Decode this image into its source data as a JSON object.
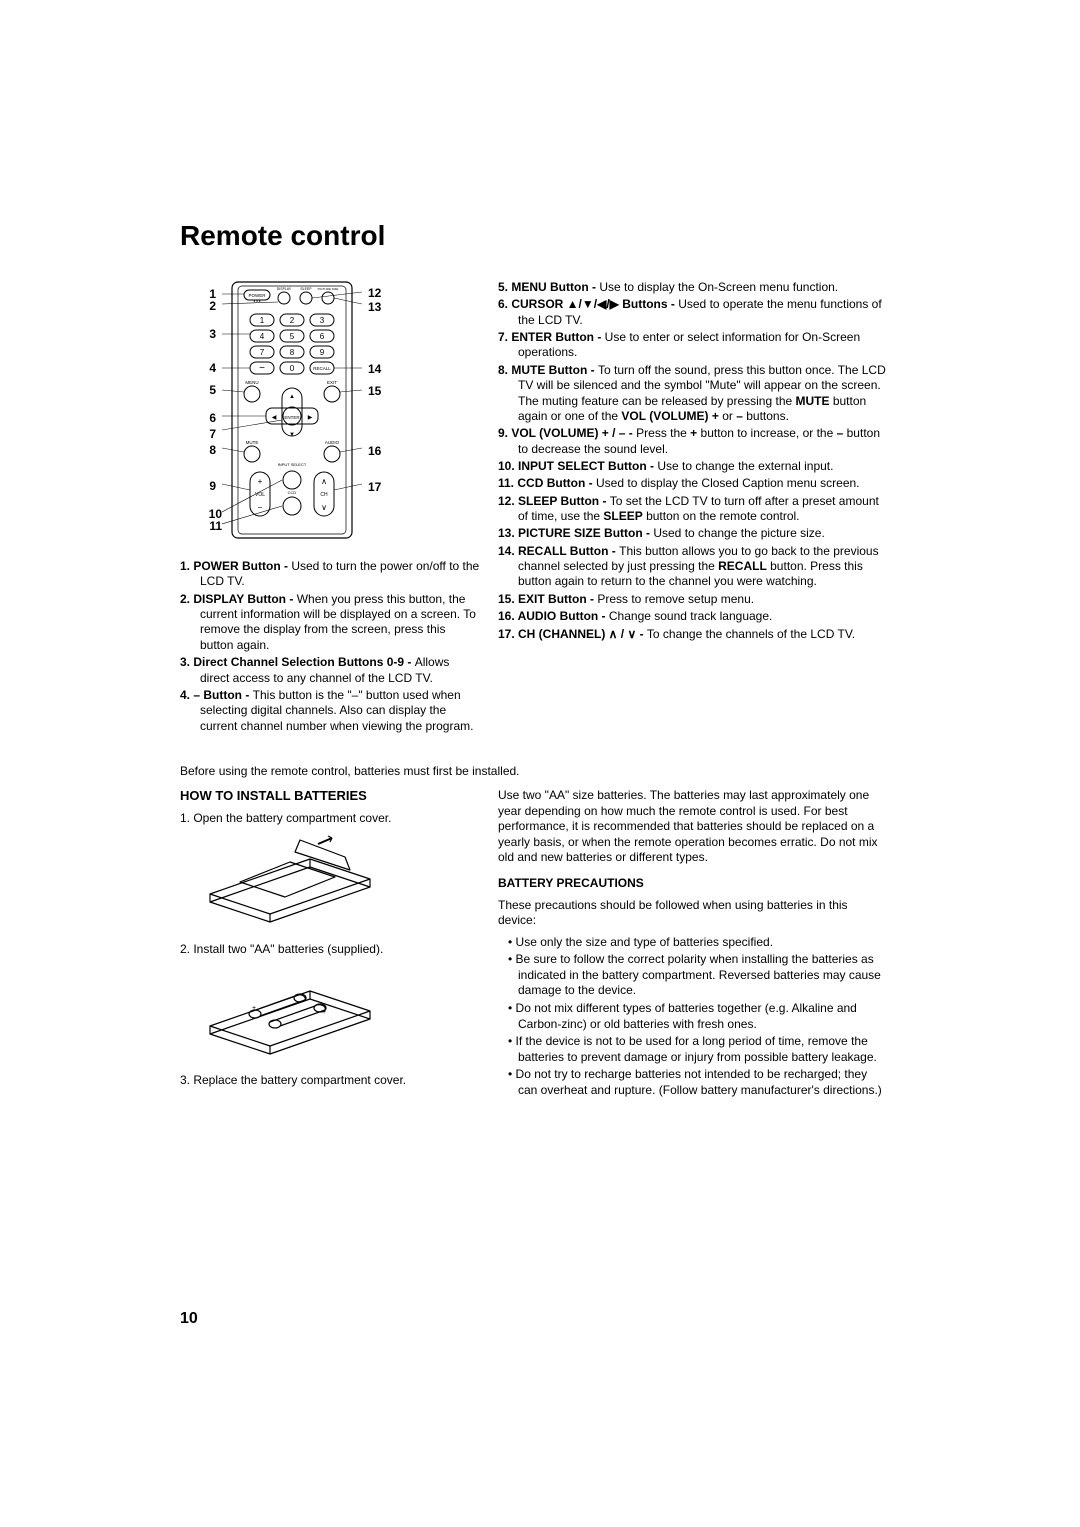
{
  "title": "Remote control",
  "page_number": "10",
  "callouts_left": {
    "c1": "1",
    "c2": "2",
    "c3": "3",
    "c4": "4",
    "c5": "5",
    "c6": "6",
    "c7": "7",
    "c8": "8",
    "c9": "9",
    "c10": "10",
    "c11": "11"
  },
  "callouts_right": {
    "c12": "12",
    "c13": "13",
    "c14": "14",
    "c15": "15",
    "c16": "16",
    "c17": "17"
  },
  "remote_labels": {
    "power": "POWER",
    "display": "DISPLAY",
    "sleep": "SLEEP",
    "psize": "PICTURE SIZE",
    "recall": "RECALL",
    "menu": "MENU",
    "exit": "EXIT",
    "enter": "ENTER",
    "mute": "MUTE",
    "audio": "AUDIO",
    "input": "INPUT SELECT",
    "vol": "VOL",
    "ccd": "CCD",
    "ch": "CH"
  },
  "descriptions_left": [
    {
      "num": "1.",
      "name": "POWER Button - ",
      "text": "Used to turn the power on/off to the LCD TV."
    },
    {
      "num": "2.",
      "name": "DISPLAY Button - ",
      "text": "When you press this button, the current information will be displayed on a screen. To remove the display from the screen, press this button again."
    },
    {
      "num": "3.",
      "name": "Direct Channel Selection Buttons 0-9 - ",
      "text": "Allows direct access to any channel of the LCD TV."
    },
    {
      "num": "4.",
      "name": "– Button - ",
      "text": "This button is the \"–\" button used when selecting digital channels. Also can display the current channel number when viewing the program."
    }
  ],
  "descriptions_right": [
    {
      "num": "5.",
      "name": "MENU Button - ",
      "text": "Use to display the On-Screen menu function."
    },
    {
      "num": "6.",
      "name": "CURSOR ▲/▼/◀/▶ Buttons - ",
      "text": "Used to operate the menu functions of the LCD TV."
    },
    {
      "num": "7.",
      "name": "ENTER Button - ",
      "text": "Use to enter or select information for On-Screen operations."
    },
    {
      "num": "8.",
      "name": "MUTE Button - ",
      "text": "To turn off the sound, press this button once. The LCD TV will be silenced and the symbol \"Mute\" will appear on the screen. The muting feature can be released by pressing the ",
      "bold2": "MUTE",
      "text2": " button again or one of the ",
      "bold3": "VOL (VOLUME) +",
      "text3": " or ",
      "bold4": "–",
      "text4": " buttons."
    },
    {
      "num": "9.",
      "name": "VOL (VOLUME) + / – - ",
      "text": "Press the ",
      "bold2": "+",
      "text2": " button to increase, or the ",
      "bold3": "–",
      "text3": " button to decrease the sound level."
    },
    {
      "num": "10.",
      "name": "INPUT SELECT Button - ",
      "text": "Use to change the external input."
    },
    {
      "num": "11.",
      "name": "CCD Button - ",
      "text": "Used to display the Closed Caption menu screen."
    },
    {
      "num": "12.",
      "name": "SLEEP Button - ",
      "text": "To set the LCD TV to turn off after a preset amount of time, use the ",
      "bold2": "SLEEP",
      "text2": " button on the remote control."
    },
    {
      "num": "13.",
      "name": "PICTURE SIZE Button - ",
      "text": "Used to change the picture size."
    },
    {
      "num": "14.",
      "name": "RECALL Button - ",
      "text": "This button allows you to go back to the previous channel selected by just pressing the ",
      "bold2": "RECALL",
      "text2": " button. Press this button again to return to the channel you were watching."
    },
    {
      "num": "15.",
      "name": "EXIT Button - ",
      "text": "Press to remove setup menu."
    },
    {
      "num": "16.",
      "name": "AUDIO Button - ",
      "text": "Change sound track language."
    },
    {
      "num": "17.",
      "name": "CH (CHANNEL) ∧ / ∨ - ",
      "text": "To change the channels of the LCD TV."
    }
  ],
  "intro": "Before using the remote control, batteries must first be installed.",
  "battery_heading": "HOW TO INSTALL BATTERIES",
  "battery_steps": {
    "s1": "1. Open the battery compartment cover.",
    "s2": "2. Install two \"AA\" batteries (supplied).",
    "s3": "3. Replace the battery compartment cover."
  },
  "battery_intro": "Use two \"AA\" size batteries. The batteries may last approximately one year depending on how much the remote control is used. For best performance, it is recommended that batteries should be replaced on a yearly basis, or when the remote operation becomes erratic. Do not mix old and new batteries or different types.",
  "precautions_heading": "BATTERY PRECAUTIONS",
  "precautions_intro": "These precautions should be followed when using batteries in this device:",
  "precautions": [
    "Use only the size and type of batteries specified.",
    "Be sure to follow the correct polarity when installing the batteries as indicated in the battery compartment. Reversed batteries may cause damage to the device.",
    "Do not mix different types of batteries together (e.g. Alkaline and Carbon-zinc) or old batteries with fresh ones.",
    "If the device is not to be used for a long period of time, remove the batteries to prevent damage or injury from possible battery leakage.",
    "Do not try to recharge batteries not intended to be recharged; they can overheat and rupture. (Follow battery manufacturer's directions.)"
  ],
  "colors": {
    "text": "#000000",
    "bg": "#ffffff",
    "stroke": "#000000"
  }
}
